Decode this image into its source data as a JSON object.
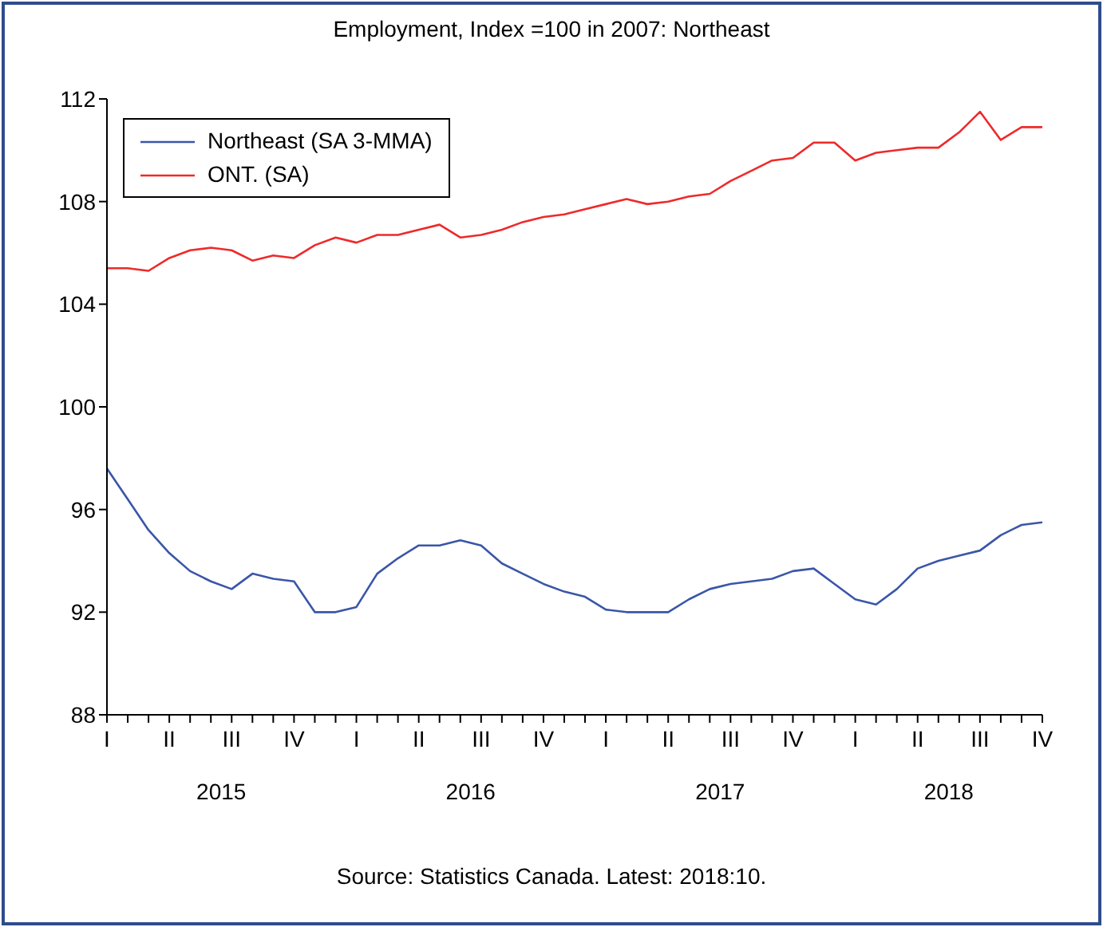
{
  "chart_data": {
    "type": "line",
    "title": "Employment, Index =100 in 2007: Northeast",
    "annotations": [
      "2015",
      "2016",
      "2017",
      "2018",
      "Source: Statistics Canada. Latest: 2018:10."
    ],
    "categories": [
      "I",
      null,
      null,
      "II",
      null,
      null,
      "III",
      null,
      null,
      "IV",
      null,
      null,
      "I",
      null,
      null,
      "II",
      null,
      null,
      "III",
      null,
      null,
      "IV",
      null,
      null,
      "I",
      null,
      null,
      "II",
      null,
      null,
      "III",
      null,
      null,
      "IV",
      null,
      null,
      "I",
      null,
      null,
      "II",
      null,
      null,
      "III",
      null,
      null,
      "IV"
    ],
    "series": [
      {
        "name": "Northeast (SA 3-MMA)",
        "color": "#3a56a8",
        "values": [
          97.6,
          96.4,
          95.2,
          94.3,
          93.6,
          93.2,
          92.9,
          93.5,
          93.3,
          93.2,
          92.0,
          92.0,
          92.2,
          93.5,
          94.1,
          94.6,
          94.6,
          94.8,
          94.6,
          93.9,
          93.5,
          93.1,
          92.8,
          92.6,
          92.1,
          92.0,
          92.0,
          92.0,
          92.5,
          92.9,
          93.1,
          93.2,
          93.3,
          93.6,
          93.7,
          93.1,
          92.5,
          92.3,
          92.9,
          93.7,
          94.0,
          94.2,
          94.4,
          95.0,
          95.4,
          95.5
        ]
      },
      {
        "name": "ONT. (SA)",
        "color": "#ee2a2a",
        "values": [
          105.4,
          105.4,
          105.3,
          105.8,
          106.1,
          106.2,
          106.1,
          105.7,
          105.9,
          105.8,
          106.3,
          106.6,
          106.4,
          106.7,
          106.7,
          106.9,
          107.1,
          106.6,
          106.7,
          106.9,
          107.2,
          107.4,
          107.5,
          107.7,
          107.9,
          108.1,
          107.9,
          108.0,
          108.2,
          108.3,
          108.8,
          109.2,
          109.6,
          109.7,
          110.3,
          110.3,
          109.6,
          109.9,
          110.0,
          110.1,
          110.1,
          110.7,
          111.5,
          110.4,
          110.9,
          110.9
        ]
      }
    ],
    "ylim": [
      88,
      112
    ],
    "yticks": [
      88,
      92,
      96,
      100,
      104,
      108,
      112
    ],
    "legend": "top left",
    "marker": "none",
    "line_style": "solid"
  }
}
